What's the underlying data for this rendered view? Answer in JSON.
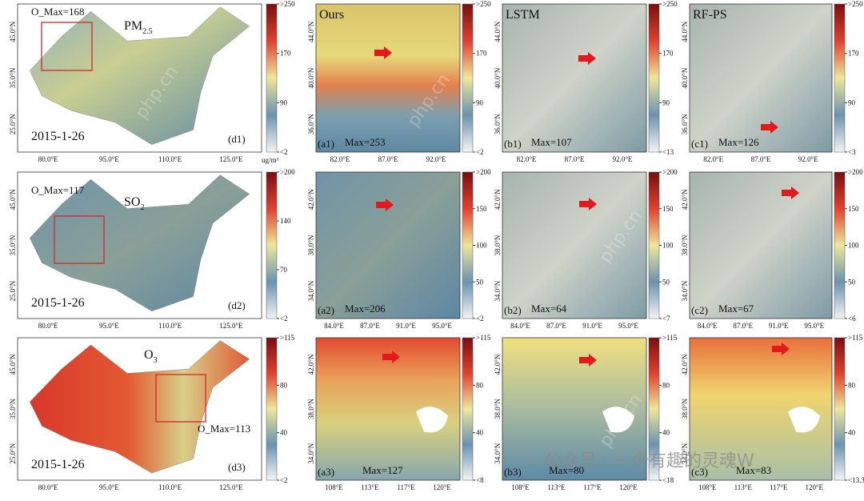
{
  "rows": [
    {
      "pollutant": {
        "text": "PM",
        "sub": "2.5"
      },
      "date": "2015-1-26",
      "o_max": "O_Max=168",
      "china": {
        "label": "(d1)",
        "lat_ticks": [
          "45.0°N",
          "35.0°N",
          "25.0°N"
        ],
        "lon_ticks": [
          "80.0°E",
          "95.0°E",
          "110.0°E",
          "125.0°E"
        ],
        "colorbar_ticks": [
          ">250",
          "170",
          "90",
          "<2"
        ],
        "unit": "ug/m³"
      },
      "panels": [
        {
          "title": "Ours",
          "label": "(a1)",
          "max": "Max=253",
          "lat_ticks": [
            "44.0°N",
            "40.0°N",
            "36.0°N"
          ],
          "lon_ticks": [
            "82.0°E",
            "87.0°E",
            "92.0°E"
          ],
          "colorbar_ticks": [
            ">250",
            "170",
            "90",
            "<2"
          ]
        },
        {
          "title": "LSTM",
          "label": "(b1)",
          "max": "Max=107",
          "lat_ticks": [
            "44.0°N",
            "40.0°N",
            "36.0°N"
          ],
          "lon_ticks": [
            "82.0°E",
            "87.0°E",
            "92.0°E"
          ],
          "colorbar_ticks": [
            ">250",
            "170",
            "90",
            "<13"
          ]
        },
        {
          "title": "RF-PS",
          "label": "(c1)",
          "max": "Max=126",
          "lat_ticks": [
            "44.0°N",
            "40.0°N",
            "36.0°N"
          ],
          "lon_ticks": [
            "82.0°E",
            "87.0°E",
            "92.0°E"
          ],
          "colorbar_ticks": [
            ">250",
            "170",
            "90",
            "<3"
          ]
        }
      ]
    },
    {
      "pollutant": {
        "text": "SO",
        "sub": "2"
      },
      "date": "2015-1-26",
      "o_max": "O_Max=117",
      "china": {
        "label": "(d2)",
        "lat_ticks": [
          "45.0°N",
          "35.0°N",
          "25.0°N"
        ],
        "lon_ticks": [
          "80.0°E",
          "95.0°E",
          "110.0°E",
          "125.0°E"
        ],
        "colorbar_ticks": [
          ">200",
          "140",
          "70",
          "<2"
        ]
      },
      "panels": [
        {
          "label": "(a2)",
          "max": "Max=206",
          "lat_ticks": [
            "42.0°N",
            "38.0°N",
            "34.0°N"
          ],
          "lon_ticks": [
            "84.0°E",
            "87.0°E",
            "91.0°E",
            "95.0°E"
          ],
          "colorbar_ticks": [
            ">200",
            "150",
            "100",
            "50",
            "<2"
          ]
        },
        {
          "label": "(b2)",
          "max": "Max=64",
          "lat_ticks": [
            "42.0°N",
            "38.0°N",
            "34.0°N"
          ],
          "lon_ticks": [
            "84.0°E",
            "87.0°E",
            "91.0°E",
            "95.0°E"
          ],
          "colorbar_ticks": [
            ">200",
            "150",
            "100",
            "50",
            "<7"
          ]
        },
        {
          "label": "(c2)",
          "max": "Max=67",
          "lat_ticks": [
            "42.0°N",
            "38.0°N",
            "34.0°N"
          ],
          "lon_ticks": [
            "84.0°E",
            "87.0°E",
            "91.0°E",
            "95.0°E"
          ],
          "colorbar_ticks": [
            ">200",
            "150",
            "100",
            "50",
            "<6"
          ]
        }
      ]
    },
    {
      "pollutant": {
        "text": "O",
        "sub": "3"
      },
      "date": "2015-1-26",
      "o_max": "O_Max=113",
      "china": {
        "label": "(d3)",
        "lat_ticks": [
          "45.0°N",
          "35.0°N",
          "25.0°N"
        ],
        "lon_ticks": [
          "80.0°E",
          "95.0°E",
          "110.0°E",
          "125.0°E"
        ],
        "colorbar_ticks": [
          ">115",
          "80",
          "40",
          "<2"
        ]
      },
      "panels": [
        {
          "label": "(a3)",
          "max": "Max=127",
          "lat_ticks": [
            "42.0°N",
            "38.0°N",
            "34.0°N"
          ],
          "lon_ticks": [
            "108°E",
            "113°E",
            "117°E",
            "120°E"
          ],
          "colorbar_ticks": [
            ">115",
            "80",
            "40",
            "<8"
          ]
        },
        {
          "label": "(b3)",
          "max": "Max=80",
          "lat_ticks": [
            "42.0°N",
            "38.0°N",
            "34.0°N"
          ],
          "lon_ticks": [
            "108°E",
            "113°E",
            "117°E",
            "120°E"
          ],
          "colorbar_ticks": [
            ">115",
            "80",
            "40",
            "<18"
          ]
        },
        {
          "label": "(c3)",
          "max": "Max=83",
          "lat_ticks": [
            "42.0°N",
            "38.0°N",
            "34.0°N"
          ],
          "lon_ticks": [
            "108°E",
            "113°E",
            "117°E",
            "120°E"
          ],
          "colorbar_ticks": [
            ">115",
            "80",
            "40",
            "<13.3"
          ]
        }
      ]
    }
  ],
  "watermark": "公众号 · 一个有趣的灵魂W",
  "site_watermark": "php.cn"
}
